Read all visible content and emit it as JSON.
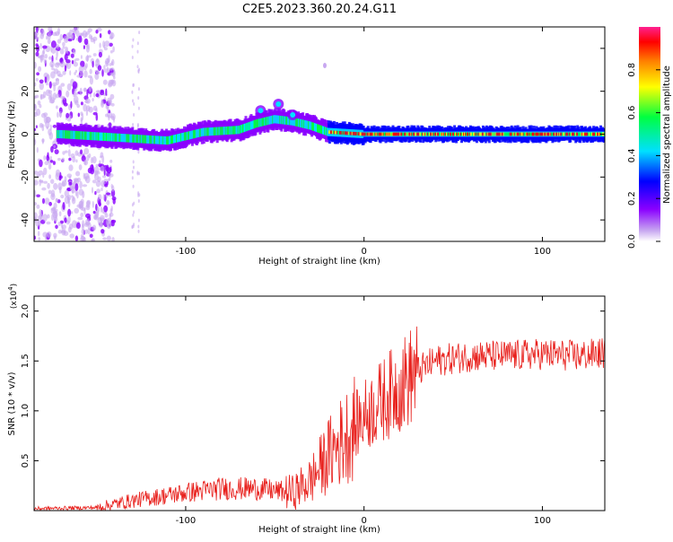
{
  "title": "C2E5.2023.360.20.24.G11",
  "chart_data": [
    {
      "type": "heatmap",
      "xlabel": "Height of straight line (km)",
      "ylabel": "Frequency (Hz)",
      "xlim": [
        -185,
        135
      ],
      "ylim": [
        -50,
        50
      ],
      "xticks": [
        "-100",
        "0",
        "100"
      ],
      "yticks": [
        "-40",
        "-20",
        "0",
        "20",
        "40"
      ],
      "colorbar": {
        "label": "Normalized spectral amplitude",
        "range": [
          0,
          1
        ],
        "ticks": [
          "0.0",
          "0.2",
          "0.4",
          "0.6",
          "0.8"
        ],
        "colormap": [
          "#ffffff",
          "#c8a8f0",
          "#8a00ff",
          "#0000ff",
          "#00e0ff",
          "#00ff40",
          "#ffff00",
          "#ff8000",
          "#ff0000",
          "#ff2090"
        ]
      },
      "signal_track": {
        "x": [
          -170,
          -150,
          -130,
          -110,
          -90,
          -70,
          -60,
          -50,
          -40,
          -30,
          -20,
          0,
          50,
          100,
          135
        ],
        "y": [
          0,
          -1,
          -2,
          -3,
          1,
          2,
          5,
          7,
          6,
          4,
          1,
          0,
          0,
          0,
          0
        ]
      }
    },
    {
      "type": "line",
      "xlabel": "Height of straight line (km)",
      "ylabel": "SNR (10 * v/v)",
      "y_multiplier": "(x10^4)",
      "xlim": [
        -185,
        135
      ],
      "ylim": [
        0,
        2.15
      ],
      "xticks": [
        "-100",
        "0",
        "100"
      ],
      "yticks": [
        "0.5",
        "1.0",
        "1.5",
        "2.0"
      ],
      "line_color": "#e8201c",
      "trend": {
        "x": [
          -185,
          -150,
          -130,
          -100,
          -80,
          -60,
          -40,
          -30,
          -20,
          -10,
          0,
          10,
          20,
          30,
          40,
          60,
          80,
          100,
          120,
          135
        ],
        "y": [
          0.02,
          0.03,
          0.1,
          0.18,
          0.22,
          0.22,
          0.18,
          0.3,
          0.55,
          0.75,
          0.95,
          1.1,
          1.25,
          1.4,
          1.5,
          1.55,
          1.55,
          1.57,
          1.55,
          1.58
        ]
      }
    }
  ]
}
